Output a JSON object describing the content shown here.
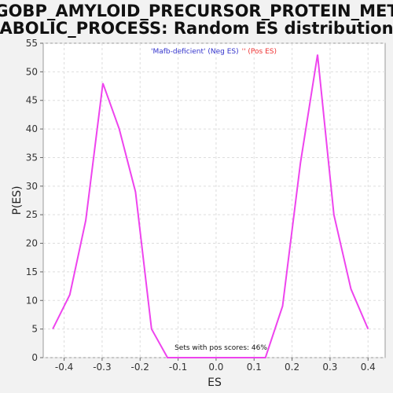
{
  "chart_data": {
    "type": "line",
    "title_line1": "GOBP_AMYLOID_PRECURSOR_PROTEIN_MET",
    "title_line2": "ABOLIC_PROCESS: Random ES distribution",
    "xlabel": "ES",
    "ylabel": "P(ES)",
    "xlim": [
      -0.455,
      0.445
    ],
    "ylim": [
      0,
      55
    ],
    "xticks": [
      -0.4,
      -0.3,
      -0.2,
      -0.1,
      0.0,
      0.1,
      0.2,
      0.3,
      0.4
    ],
    "xtick_labels": [
      "-0.4",
      "-0.3",
      "-0.2",
      "-0.1",
      "0.0",
      "0.1",
      "0.2",
      "0.3",
      "0.4"
    ],
    "yticks": [
      0,
      5,
      10,
      15,
      20,
      25,
      30,
      35,
      40,
      45,
      50,
      55
    ],
    "ytick_labels": [
      "0",
      "5",
      "10",
      "15",
      "20",
      "25",
      "30",
      "35",
      "40",
      "45",
      "50",
      "55"
    ],
    "grid": true,
    "legend": {
      "neg_label": "'Mafb-deficient' (Neg ES)",
      "pos_label": "'' (Pos ES)",
      "neg_color": "#3333cc",
      "pos_color": "#ee3333",
      "placement": "top"
    },
    "annotation": "Sets with pos scores: 46%",
    "series": [
      {
        "color": "#ee44ee",
        "x": [
          -0.43,
          -0.385,
          -0.343,
          -0.298,
          -0.255,
          -0.212,
          -0.17,
          -0.128,
          -0.085,
          -0.043,
          0.0,
          0.043,
          0.085,
          0.13,
          0.175,
          0.222,
          0.267,
          0.31,
          0.355,
          0.4
        ],
        "y": [
          5,
          11,
          24,
          48,
          40,
          29,
          5,
          0,
          0,
          0,
          0,
          0,
          0,
          0,
          9,
          34,
          53,
          25,
          12,
          5
        ]
      }
    ]
  }
}
